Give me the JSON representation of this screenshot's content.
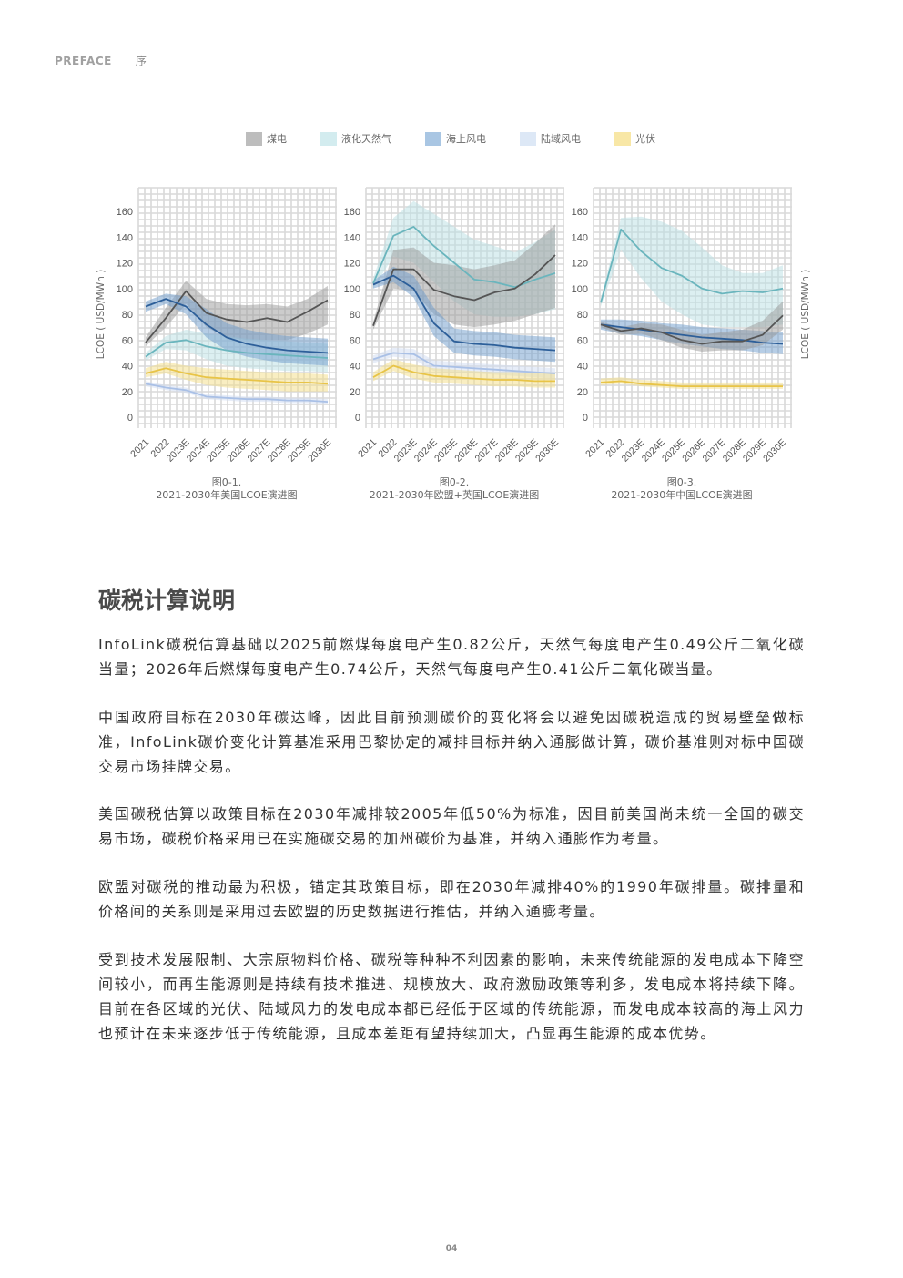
{
  "header": {
    "label_en": "PREFACE",
    "label_cn": "序"
  },
  "legend": [
    {
      "name": "煤电",
      "color": "#bdbdbd"
    },
    {
      "name": "液化天然气",
      "color": "#d3ecef"
    },
    {
      "name": "海上风电",
      "color": "#a9c6e3"
    },
    {
      "name": "陆域风电",
      "color": "#dde8f6"
    },
    {
      "name": "光伏",
      "color": "#f8e7a6"
    }
  ],
  "series_colors": {
    "煤电": {
      "line": "#555555",
      "band": "#9a9a9a"
    },
    "液化天然气": {
      "line": "#6ab5bd",
      "band": "#b9e0e4"
    },
    "海上风电": {
      "line": "#2d5f99",
      "band": "#6e9bcb"
    },
    "陆域风电": {
      "line": "#a9c0e6",
      "band": "#cfdcf2"
    },
    "光伏": {
      "line": "#e8c447",
      "band": "#f4dd86"
    }
  },
  "chart_data": [
    {
      "type": "line",
      "ylabel": "LCOE ( USD/MWh )",
      "ylim": [
        0,
        160
      ],
      "x": [
        "2021",
        "2022",
        "2023E",
        "2024E",
        "2025E",
        "2026E",
        "2027E",
        "2028E",
        "2029E",
        "2030E"
      ],
      "caption_no": "图0-1.",
      "caption_title": "2021-2030年美国LCOE演进图",
      "series": [
        {
          "name": "煤电",
          "values": [
            58,
            77,
            98,
            81,
            76,
            74,
            77,
            74,
            82,
            91
          ],
          "low": [
            55,
            70,
            88,
            70,
            62,
            60,
            60,
            60,
            65,
            72
          ],
          "high": [
            62,
            85,
            106,
            92,
            88,
            87,
            88,
            86,
            92,
            102
          ]
        },
        {
          "name": "液化天然气",
          "values": [
            47,
            58,
            60,
            55,
            52,
            50,
            49,
            48,
            47,
            46
          ],
          "low": [
            44,
            53,
            52,
            45,
            40,
            38,
            37,
            36,
            36,
            35
          ],
          "high": [
            50,
            63,
            68,
            65,
            63,
            61,
            60,
            59,
            58,
            57
          ]
        },
        {
          "name": "海上风电",
          "values": [
            86,
            92,
            86,
            72,
            62,
            57,
            54,
            52,
            51,
            50
          ],
          "low": [
            82,
            88,
            80,
            62,
            52,
            47,
            44,
            42,
            41,
            40
          ],
          "high": [
            90,
            96,
            94,
            84,
            73,
            68,
            65,
            63,
            62,
            61
          ]
        },
        {
          "name": "陆域风电",
          "values": [
            26,
            23,
            21,
            16,
            15,
            14,
            14,
            13,
            13,
            12
          ],
          "low": [
            24,
            21,
            19,
            14,
            13,
            12,
            12,
            11,
            11,
            10
          ],
          "high": [
            28,
            25,
            23,
            18,
            17,
            16,
            16,
            15,
            15,
            14
          ]
        },
        {
          "name": "光伏",
          "values": [
            34,
            38,
            34,
            31,
            30,
            29,
            28,
            27,
            27,
            26
          ],
          "low": [
            31,
            34,
            29,
            25,
            23,
            22,
            21,
            20,
            20,
            20
          ],
          "high": [
            38,
            43,
            40,
            38,
            37,
            36,
            35,
            35,
            34,
            33
          ]
        }
      ]
    },
    {
      "type": "line",
      "ylabel": "",
      "ylim": [
        0,
        160
      ],
      "x": [
        "2021",
        "2022",
        "2023E",
        "2024E",
        "2025E",
        "2026E",
        "2027E",
        "2028E",
        "2029E",
        "2030E"
      ],
      "caption_no": "图0-2.",
      "caption_title": "2021-2030年欧盟+英国LCOE演进图",
      "series": [
        {
          "name": "液化天然气",
          "values": [
            104,
            141,
            148,
            133,
            120,
            107,
            105,
            101,
            107,
            112
          ],
          "low": [
            100,
            125,
            120,
            105,
            90,
            80,
            78,
            78,
            80,
            84
          ],
          "high": [
            108,
            155,
            168,
            158,
            148,
            138,
            133,
            128,
            136,
            146
          ]
        },
        {
          "name": "煤电",
          "values": [
            71,
            115,
            115,
            99,
            94,
            91,
            97,
            100,
            111,
            126
          ],
          "low": [
            68,
            100,
            98,
            80,
            72,
            70,
            72,
            75,
            80,
            85
          ],
          "high": [
            74,
            130,
            132,
            120,
            118,
            115,
            118,
            122,
            135,
            150
          ]
        },
        {
          "name": "海上风电",
          "values": [
            103,
            110,
            100,
            73,
            59,
            57,
            56,
            54,
            53,
            52
          ],
          "low": [
            100,
            105,
            93,
            63,
            50,
            48,
            47,
            45,
            44,
            43
          ],
          "high": [
            106,
            117,
            110,
            85,
            69,
            67,
            66,
            64,
            63,
            62
          ]
        },
        {
          "name": "陆域风电",
          "values": [
            45,
            50,
            49,
            40,
            39,
            38,
            37,
            36,
            35,
            34
          ],
          "low": [
            42,
            47,
            45,
            36,
            35,
            34,
            33,
            32,
            31,
            30
          ],
          "high": [
            48,
            54,
            53,
            44,
            43,
            42,
            41,
            40,
            39,
            38
          ]
        },
        {
          "name": "光伏",
          "values": [
            31,
            40,
            35,
            32,
            31,
            30,
            29,
            29,
            28,
            28
          ],
          "low": [
            28,
            36,
            30,
            27,
            26,
            25,
            24,
            24,
            23,
            23
          ],
          "high": [
            35,
            45,
            41,
            38,
            37,
            36,
            35,
            35,
            34,
            34
          ]
        }
      ]
    },
    {
      "type": "line",
      "ylabel": "LCOE ( USD/MWh )",
      "ylim": [
        0,
        160
      ],
      "x": [
        "2021",
        "2022",
        "2023E",
        "2024E",
        "2025E",
        "2026E",
        "2027E",
        "2028E",
        "2029E",
        "2030E"
      ],
      "caption_no": "图0-3.",
      "caption_title": "2021-2030年中国LCOE演进图",
      "series": [
        {
          "name": "液化天然气",
          "values": [
            89,
            146,
            129,
            116,
            110,
            100,
            96,
            98,
            97,
            100
          ],
          "low": [
            86,
            130,
            108,
            90,
            80,
            72,
            70,
            70,
            70,
            72
          ],
          "high": [
            92,
            155,
            156,
            152,
            145,
            132,
            118,
            112,
            112,
            118
          ]
        },
        {
          "name": "海上风电",
          "values": [
            72,
            70,
            68,
            66,
            64,
            62,
            61,
            60,
            58,
            57
          ],
          "low": [
            68,
            65,
            63,
            60,
            57,
            55,
            53,
            52,
            50,
            49
          ],
          "high": [
            76,
            76,
            75,
            73,
            72,
            70,
            69,
            68,
            67,
            66
          ]
        },
        {
          "name": "煤电",
          "values": [
            72,
            67,
            69,
            66,
            60,
            57,
            59,
            59,
            64,
            79
          ],
          "low": [
            70,
            64,
            65,
            60,
            54,
            51,
            52,
            52,
            56,
            68
          ],
          "high": [
            74,
            70,
            73,
            72,
            68,
            64,
            66,
            68,
            75,
            90
          ]
        },
        {
          "name": "光伏",
          "values": [
            27,
            28,
            26,
            25,
            24,
            24,
            24,
            24,
            24,
            24
          ],
          "low": [
            25,
            26,
            24,
            23,
            22,
            22,
            22,
            22,
            22,
            22
          ],
          "high": [
            30,
            31,
            29,
            28,
            27,
            27,
            27,
            27,
            27,
            27
          ]
        }
      ]
    }
  ],
  "section_title": "碳税计算说明",
  "paragraphs": [
    "InfoLink碳税估算基础以2025前燃煤每度电产生0.82公斤，天然气每度电产生0.49公斤二氧化碳当量；2026年后燃煤每度电产生0.74公斤，天然气每度电产生0.41公斤二氧化碳当量。",
    "中国政府目标在2030年碳达峰，因此目前预测碳价的变化将会以避免因碳税造成的贸易壁垒做标准，InfoLink碳价变化计算基准采用巴黎协定的减排目标并纳入通膨做计算，碳价基准则对标中国碳交易市场挂牌交易。",
    "美国碳税估算以政策目标在2030年减排较2005年低50%为标准，因目前美国尚未统一全国的碳交易市场，碳税价格采用已在实施碳交易的加州碳价为基准，并纳入通膨作为考量。",
    "欧盟对碳税的推动最为积极，锚定其政策目标，即在2030年减排40%的1990年碳排量。碳排量和价格间的关系则是采用过去欧盟的历史数据进行推估，并纳入通膨考量。",
    "受到技术发展限制、大宗原物料价格、碳税等种种不利因素的影响，未来传统能源的发电成本下降空间较小，而再生能源则是持续有技术推进、规模放大、政府激励政策等利多，发电成本将持续下降。目前在各区域的光伏、陆域风力的发电成本都已经低于区域的传统能源，而发电成本较高的海上风力也预计在未来逐步低于传统能源，且成本差距有望持续加大，凸显再生能源的成本优势。"
  ],
  "page_number": "04"
}
